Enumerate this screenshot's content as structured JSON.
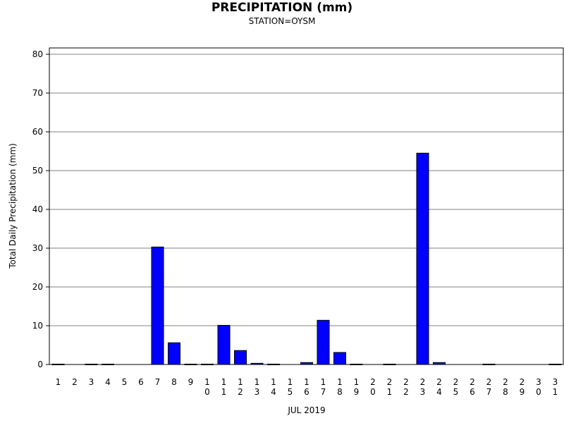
{
  "colors": {
    "bar_fill": "#0000ff",
    "bar_stroke": "#000000",
    "grid": "#808080"
  },
  "chart_data": {
    "type": "bar",
    "title": "PRECIPITATION (mm)",
    "subtitle": "STATION=OYSM",
    "xlabel": "JUL 2019",
    "ylabel": "Total Daily Precipitation (mm)",
    "ylim": [
      0,
      80
    ],
    "yticks": [
      0,
      10,
      20,
      30,
      40,
      50,
      60,
      70,
      80
    ],
    "grid": true,
    "categories": [
      "1",
      "2",
      "3",
      "4",
      "5",
      "6",
      "7",
      "8",
      "9",
      "10",
      "11",
      "12",
      "13",
      "14",
      "15",
      "16",
      "17",
      "18",
      "19",
      "20",
      "21",
      "22",
      "23",
      "24",
      "25",
      "26",
      "27",
      "28",
      "29",
      "30",
      "31"
    ],
    "values": [
      0.1,
      0,
      0.1,
      0.1,
      0,
      0,
      30.3,
      5.6,
      0.1,
      0.1,
      10.1,
      3.6,
      0.3,
      0.1,
      0,
      0.5,
      11.4,
      3.1,
      0.1,
      0,
      0.1,
      0,
      54.5,
      0.5,
      0,
      0,
      0.1,
      0,
      0,
      0,
      0.1
    ]
  }
}
